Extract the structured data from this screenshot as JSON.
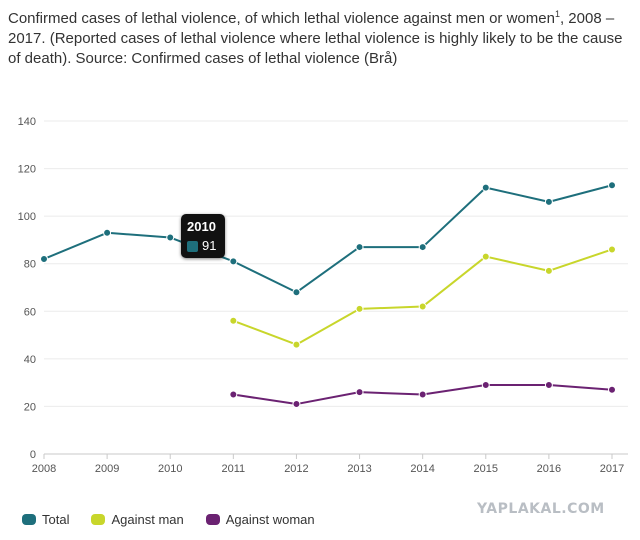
{
  "page": {
    "title_main": "Confirmed cases of lethal violence, of which lethal violence against men or women",
    "title_sup": "1",
    "title_rest": ", 2008 – 2017. (Reported cases of lethal violence where lethal violence is highly likely to be the cause of death). Source: Confirmed cases of lethal violence (Brå)",
    "watermark": "YAPLAKAL.COM"
  },
  "tooltip": {
    "year": "2010",
    "value": "91",
    "color": "#1e6f7c"
  },
  "chart_data": {
    "type": "line",
    "x": [
      "2008",
      "2009",
      "2010",
      "2011",
      "2012",
      "2013",
      "2014",
      "2015",
      "2016",
      "2017"
    ],
    "ylim": [
      0,
      140
    ],
    "yticks": [
      "0",
      "20",
      "40",
      "60",
      "80",
      "100",
      "120",
      "140"
    ],
    "grid": true,
    "legend_position": "bottom-left",
    "series": [
      {
        "name": "Total",
        "color": "#1e6f7c",
        "values": [
          82,
          93,
          91,
          81,
          68,
          87,
          87,
          112,
          106,
          113
        ]
      },
      {
        "name": "Against man",
        "color": "#c8d62b",
        "values": [
          null,
          null,
          null,
          56,
          46,
          61,
          62,
          83,
          77,
          86
        ]
      },
      {
        "name": "Against woman",
        "color": "#6b2272",
        "values": [
          null,
          null,
          null,
          25,
          21,
          26,
          25,
          29,
          29,
          27
        ]
      }
    ]
  }
}
